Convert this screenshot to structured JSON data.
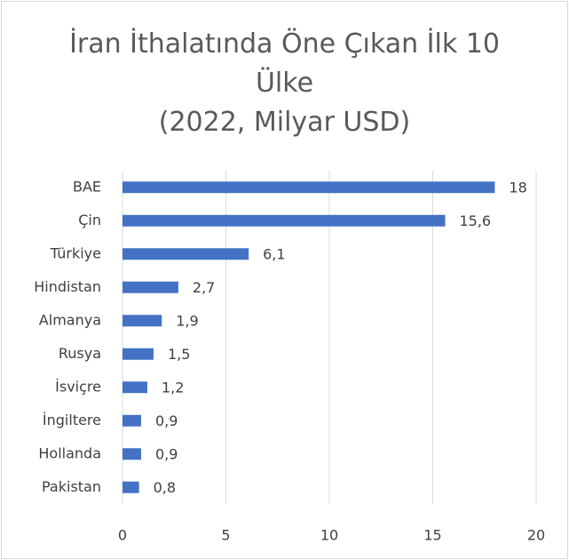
{
  "chart_data": {
    "type": "bar",
    "orientation": "horizontal",
    "title": "İran İthalatında Öne Çıkan İlk 10 Ülke",
    "subtitle": "(2022, Milyar USD)",
    "categories": [
      "BAE",
      "Çin",
      "Türkiye",
      "Hindistan",
      "Almanya",
      "Rusya",
      "İsviçre",
      "İngiltere",
      "Hollanda",
      "Pakistan"
    ],
    "values": [
      18,
      15.6,
      6.1,
      2.7,
      1.9,
      1.5,
      1.2,
      0.9,
      0.9,
      0.8
    ],
    "value_labels": [
      "18",
      "15,6",
      "6,1",
      "2,7",
      "1,9",
      "1,5",
      "1,2",
      "0,9",
      "0,9",
      "0,8"
    ],
    "color": "#4472c4",
    "xlim": [
      0,
      20
    ],
    "xticks": [
      0,
      5,
      10,
      15,
      20
    ],
    "grid": true
  }
}
